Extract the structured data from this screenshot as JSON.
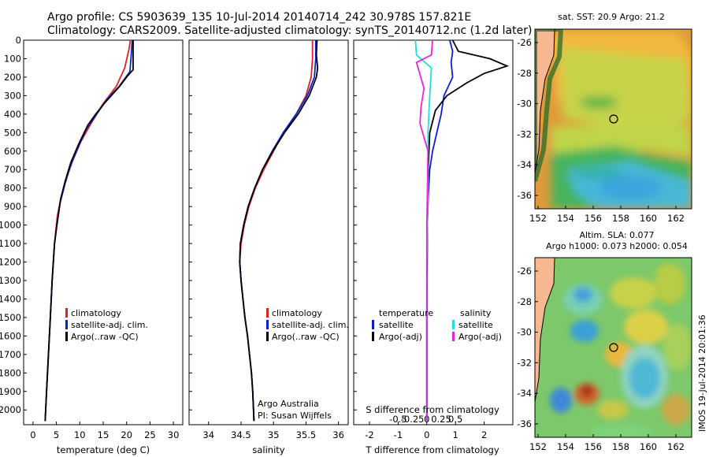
{
  "title_line1": "Argo profile: CS 5903639_135 10-Jul-2014 20140714_242 30.978S 157.821E",
  "title_line2": "Climatology: CARS2009. Satellite-adjusted climatology: synTS_20140712.nc (1.2d later)",
  "depth_ticks": [
    "0",
    "100",
    "200",
    "300",
    "400",
    "500",
    "600",
    "700",
    "800",
    "900",
    "1000",
    "1100",
    "1200",
    "1300",
    "1400",
    "1500",
    "1600",
    "1700",
    "1800",
    "1900",
    "2000"
  ],
  "chart_data": [
    {
      "type": "line",
      "panel": "temperature",
      "xlabel": "temperature (deg C)",
      "ylabel": "depth",
      "xlim": [
        -2,
        32
      ],
      "ylim": [
        2080,
        0
      ],
      "xticks": [
        "0",
        "5",
        "10",
        "15",
        "20",
        "25",
        "30"
      ],
      "legend": [
        "climatology",
        "satellite-adj. clim.",
        "Argo(..raw -QC)"
      ],
      "series": [
        {
          "name": "climatology",
          "color": "#dd2222",
          "points": [
            [
              20.8,
              0
            ],
            [
              20.5,
              50
            ],
            [
              19.6,
              150
            ],
            [
              17.8,
              250
            ],
            [
              14.8,
              350
            ],
            [
              12.4,
              450
            ],
            [
              10.2,
              550
            ],
            [
              8.5,
              650
            ],
            [
              7.1,
              750
            ],
            [
              6.0,
              850
            ],
            [
              5.2,
              950
            ],
            [
              4.6,
              1100
            ],
            [
              4.1,
              1300
            ],
            [
              3.7,
              1500
            ],
            [
              3.3,
              1700
            ],
            [
              2.9,
              1900
            ],
            [
              2.6,
              2060
            ]
          ]
        },
        {
          "name": "satellite-adj. clim.",
          "color": "#0a1fd0",
          "points": [
            [
              21.2,
              0
            ],
            [
              21.0,
              80
            ],
            [
              20.7,
              170
            ],
            [
              18.4,
              250
            ],
            [
              15.8,
              320
            ],
            [
              13.6,
              400
            ],
            [
              11.4,
              480
            ],
            [
              9.6,
              580
            ],
            [
              8.0,
              680
            ],
            [
              6.8,
              780
            ],
            [
              5.8,
              880
            ],
            [
              5.1,
              1000
            ],
            [
              4.6,
              1100
            ],
            [
              4.1,
              1300
            ],
            [
              3.7,
              1500
            ],
            [
              3.3,
              1700
            ],
            [
              2.9,
              1900
            ],
            [
              2.6,
              2060
            ]
          ]
        },
        {
          "name": "Argo(..raw -QC)",
          "color": "#000000",
          "points": [
            [
              21.4,
              0
            ],
            [
              21.4,
              160
            ],
            [
              20.3,
              190
            ],
            [
              18.5,
              250
            ],
            [
              15.3,
              340
            ],
            [
              13.4,
              400
            ],
            [
              11.7,
              460
            ],
            [
              9.8,
              560
            ],
            [
              8.1,
              660
            ],
            [
              6.9,
              760
            ],
            [
              5.9,
              860
            ],
            [
              5.1,
              1000
            ],
            [
              4.6,
              1100
            ],
            [
              4.1,
              1300
            ],
            [
              3.7,
              1500
            ],
            [
              3.3,
              1700
            ],
            [
              2.9,
              1900
            ],
            [
              2.6,
              2060
            ]
          ]
        }
      ]
    },
    {
      "type": "line",
      "panel": "salinity",
      "xlabel": "salinity",
      "ylabel": "depth",
      "xlim": [
        33.7,
        36.15
      ],
      "ylim": [
        2080,
        0
      ],
      "xticks": [
        "34",
        "34.5",
        "35",
        "35.5",
        "36"
      ],
      "legend": [
        "climatology",
        "satellite-adj. clim.",
        "Argo(..raw -QC)"
      ],
      "annotation": [
        "Argo Australia",
        "PI: Susan Wijffels"
      ],
      "series": [
        {
          "name": "climatology",
          "color": "#dd2222",
          "points": [
            [
              35.6,
              0
            ],
            [
              35.6,
              100
            ],
            [
              35.58,
              200
            ],
            [
              35.5,
              300
            ],
            [
              35.35,
              400
            ],
            [
              35.15,
              500
            ],
            [
              35.0,
              600
            ],
            [
              34.85,
              700
            ],
            [
              34.72,
              800
            ],
            [
              34.62,
              900
            ],
            [
              34.55,
              1000
            ],
            [
              34.5,
              1100
            ],
            [
              34.48,
              1200
            ],
            [
              34.5,
              1300
            ],
            [
              34.53,
              1400
            ],
            [
              34.56,
              1500
            ],
            [
              34.6,
              1600
            ],
            [
              34.63,
              1700
            ],
            [
              34.66,
              1800
            ],
            [
              34.68,
              1900
            ],
            [
              34.7,
              2060
            ]
          ]
        },
        {
          "name": "satellite-adj. clim.",
          "color": "#0a1fd0",
          "points": [
            [
              35.65,
              0
            ],
            [
              35.65,
              100
            ],
            [
              35.63,
              200
            ],
            [
              35.52,
              300
            ],
            [
              35.35,
              400
            ],
            [
              35.15,
              500
            ],
            [
              34.98,
              600
            ],
            [
              34.83,
              700
            ],
            [
              34.71,
              800
            ],
            [
              34.61,
              900
            ],
            [
              34.54,
              1000
            ],
            [
              34.49,
              1100
            ],
            [
              34.48,
              1200
            ],
            [
              34.5,
              1300
            ],
            [
              34.53,
              1400
            ],
            [
              34.56,
              1500
            ],
            [
              34.6,
              1600
            ],
            [
              34.63,
              1700
            ],
            [
              34.66,
              1800
            ],
            [
              34.68,
              1900
            ],
            [
              34.7,
              2060
            ]
          ]
        },
        {
          "name": "Argo(..raw -QC)",
          "color": "#000000",
          "points": [
            [
              35.67,
              0
            ],
            [
              35.66,
              80
            ],
            [
              35.68,
              150
            ],
            [
              35.66,
              200
            ],
            [
              35.55,
              300
            ],
            [
              35.38,
              400
            ],
            [
              35.17,
              500
            ],
            [
              34.99,
              600
            ],
            [
              34.83,
              700
            ],
            [
              34.71,
              800
            ],
            [
              34.61,
              900
            ],
            [
              34.54,
              1000
            ],
            [
              34.49,
              1100
            ],
            [
              34.48,
              1200
            ],
            [
              34.5,
              1300
            ],
            [
              34.53,
              1400
            ],
            [
              34.56,
              1500
            ],
            [
              34.6,
              1600
            ],
            [
              34.63,
              1700
            ],
            [
              34.66,
              1800
            ],
            [
              34.68,
              1900
            ],
            [
              34.7,
              2060
            ]
          ]
        }
      ]
    },
    {
      "type": "line",
      "panel": "difference",
      "ylabel": "depth",
      "xlabel": "T difference from climatology",
      "xlabel_top": "S difference from climatology",
      "xlim": [
        -2.55,
        3.0
      ],
      "ylim": [
        2080,
        0
      ],
      "xticks": [
        "-2",
        "-1",
        "0",
        "1",
        "2"
      ],
      "sticks": [
        "-0.5",
        "-0.25",
        "0",
        "0.25",
        "0.5"
      ],
      "legend_headers": [
        "temperature",
        "salinity"
      ],
      "legend": [
        "satellite",
        "Argo(-adj)",
        "satellite",
        "Argo(-adj)"
      ],
      "series": [
        {
          "name": "T satellite",
          "color": "#0a1fd0",
          "points": [
            [
              0.8,
              0
            ],
            [
              0.9,
              60
            ],
            [
              0.85,
              120
            ],
            [
              0.9,
              200
            ],
            [
              0.6,
              300
            ],
            [
              0.5,
              400
            ],
            [
              0.35,
              500
            ],
            [
              0.2,
              600
            ],
            [
              0.1,
              700
            ],
            [
              0.05,
              850
            ],
            [
              0.02,
              1000
            ],
            [
              0,
              1500
            ],
            [
              0,
              2060
            ]
          ]
        },
        {
          "name": "T Argo(-adj)",
          "color": "#000000",
          "points": [
            [
              0.9,
              0
            ],
            [
              1.1,
              60
            ],
            [
              2.2,
              100
            ],
            [
              2.8,
              140
            ],
            [
              2.0,
              180
            ],
            [
              1.4,
              230
            ],
            [
              0.7,
              300
            ],
            [
              0.3,
              380
            ],
            [
              0.1,
              500
            ],
            [
              0.05,
              700
            ],
            [
              0.02,
              1000
            ],
            [
              0,
              1500
            ],
            [
              0,
              2060
            ]
          ]
        },
        {
          "name": "S satellite",
          "color": "#1ee0e0",
          "points": [
            [
              -0.2,
              0
            ],
            [
              -0.18,
              80
            ],
            [
              0.08,
              150
            ],
            [
              0.05,
              300
            ],
            [
              0.02,
              500
            ],
            [
              0.02,
              800
            ],
            [
              0,
              1200
            ],
            [
              0,
              2060
            ]
          ]
        },
        {
          "name": "S Argo(-adj)",
          "color": "#ee22dd",
          "points": [
            [
              0.1,
              0
            ],
            [
              0.08,
              80
            ],
            [
              -0.18,
              120
            ],
            [
              -0.05,
              260
            ],
            [
              -0.1,
              360
            ],
            [
              -0.12,
              450
            ],
            [
              0.02,
              600
            ],
            [
              0,
              1000
            ],
            [
              0,
              2060
            ]
          ]
        }
      ]
    }
  ],
  "maps": [
    {
      "title": "sat. SST: 20.9  Argo: 21.2",
      "lat_ticks": [
        "-26",
        "-28",
        "-30",
        "-32",
        "-34",
        "-36"
      ],
      "lon_ticks": [
        "152",
        "154",
        "156",
        "158",
        "160",
        "162"
      ]
    },
    {
      "title_line1": "Altim. SLA: 0.077",
      "title_line2": "Argo h1000: 0.073 h2000: 0.054",
      "lat_ticks": [
        "-26",
        "-28",
        "-30",
        "-32",
        "-34",
        "-36"
      ],
      "lon_ticks": [
        "152",
        "154",
        "156",
        "158",
        "160",
        "162"
      ]
    }
  ],
  "stamp": "IMOS 19-Jul-2014 20:01:36"
}
